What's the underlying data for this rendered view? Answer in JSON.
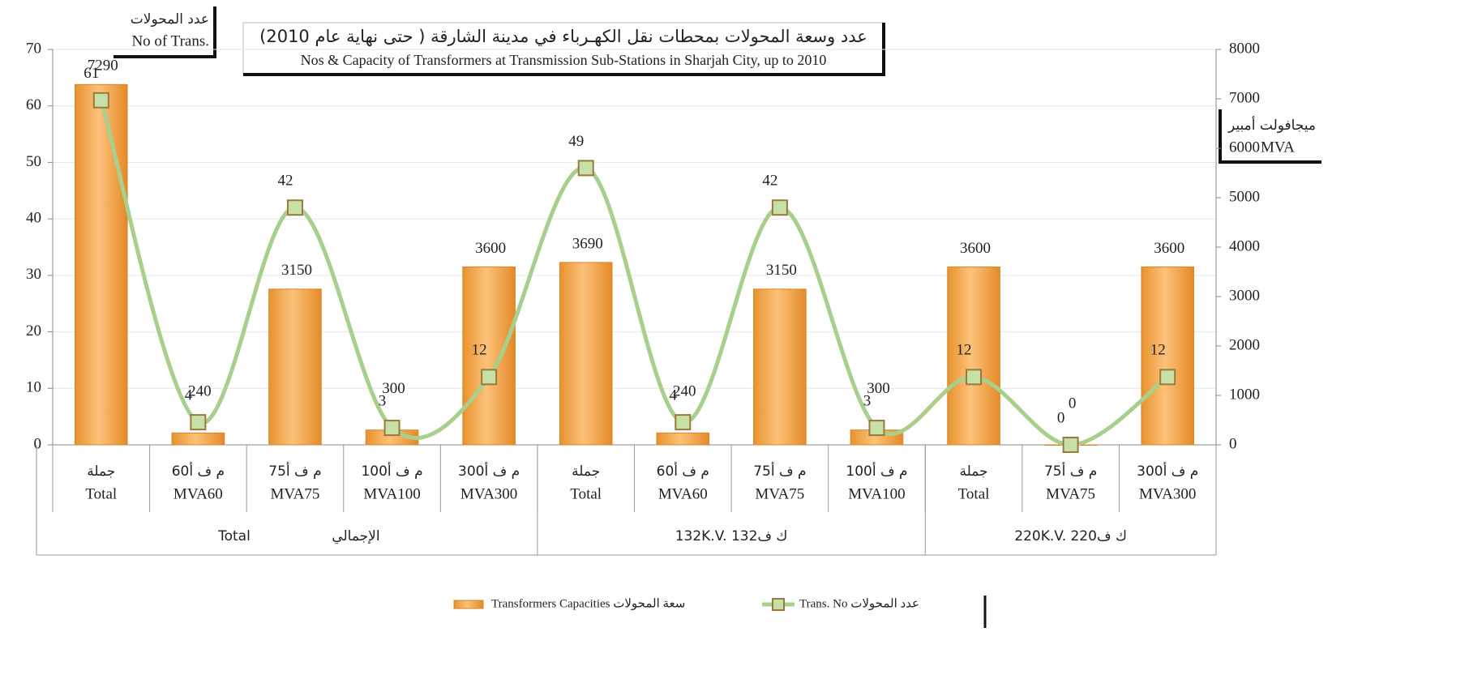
{
  "chart_data": {
    "type": "bar-line",
    "title": "عدد وسعة المحولات بمحطات نقل الكهـرباء في مدينة الشارقة ( حتى نهاية عام 2010)",
    "subtitle": "Nos & Capacity of Transformers at Transmission Sub-Stations in Sharjah City, up to 2010",
    "y_label": [
      "عدد المحولات",
      "No of Trans."
    ],
    "y2_label": [
      "ميجافولت أمبير",
      "MVA"
    ],
    "categories": [
      [
        "جملة",
        "Total"
      ],
      [
        "60م ف أ",
        "MVA60"
      ],
      [
        "75م ف أ",
        "MVA75"
      ],
      [
        "100م ف أ",
        "MVA100"
      ],
      [
        "300م ف أ",
        "MVA300"
      ],
      [
        "جملة",
        "Total"
      ],
      [
        "60م ف أ",
        "MVA60"
      ],
      [
        "75م ف أ",
        "MVA75"
      ],
      [
        "100م ف أ",
        "MVA100"
      ],
      [
        "جملة",
        "Total"
      ],
      [
        "75م ف أ",
        "MVA75"
      ],
      [
        "300م ف أ",
        "MVA300"
      ]
    ],
    "groups": [
      {
        "name": [
          "Total",
          "الإجمالي"
        ],
        "count": 5
      },
      {
        "name": [
          "132K.V. 132ك ف"
        ],
        "count": 4
      },
      {
        "name": [
          "220K.V. 220ك ف"
        ],
        "count": 3
      }
    ],
    "series": [
      {
        "name": "Transformers Capacities سعة المحولات",
        "type": "bar",
        "axis": "y2",
        "color": "#f3a646",
        "values": [
          7290,
          240,
          3150,
          300,
          3600,
          3690,
          240,
          3150,
          300,
          3600,
          0,
          3600
        ]
      },
      {
        "name": "Trans. No عدد المحولات",
        "type": "line",
        "axis": "y",
        "color": "#a8cf8c",
        "values": [
          61,
          4,
          42,
          3,
          12,
          49,
          4,
          42,
          3,
          12,
          0,
          12
        ]
      }
    ],
    "ylim": [
      0,
      70
    ],
    "yticks": [
      0,
      10,
      20,
      30,
      40,
      50,
      60,
      70
    ],
    "y2lim": [
      0,
      8000
    ],
    "y2ticks": [
      0,
      1000,
      2000,
      3000,
      4000,
      5000,
      6000,
      7000,
      8000
    ],
    "grid": true,
    "legend": "bottom"
  }
}
